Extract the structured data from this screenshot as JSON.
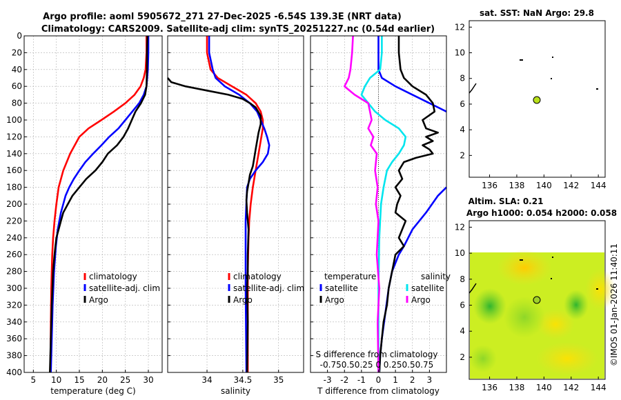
{
  "figure": {
    "title_line1": "Argo profile: aoml 5905672_271 27-Dec-2025 -6.54S 139.3E (NRT data)",
    "title_line2": "Climatology: CARS2009. Satellite-adj clim: synTS_20251227.nc (0.54d earlier)",
    "footer": "©IMOS 01-Jan-2026 11:40:11"
  },
  "colors": {
    "climatology": "#ff0000",
    "satellite": "#0000ff",
    "argo": "#000000",
    "sat_salinity": "#00e5ee",
    "argo_salinity": "#ff00ff",
    "map_fill": "#ccee22",
    "marker": "#b8e01a"
  },
  "chart_data": [
    {
      "id": "temp",
      "type": "line",
      "xlabel": "temperature (deg C)",
      "ylabel": "",
      "xlim": [
        3,
        33
      ],
      "ylim": [
        400,
        0
      ],
      "xticks": [
        5,
        10,
        15,
        20,
        25,
        30
      ],
      "yticks": [
        0,
        20,
        40,
        60,
        80,
        100,
        120,
        140,
        160,
        180,
        200,
        220,
        240,
        260,
        280,
        300,
        320,
        340,
        360,
        380,
        400
      ],
      "legend": [
        "climatology",
        "satellite-adj. clim",
        "Argo"
      ],
      "series": [
        {
          "name": "climatology",
          "color_key": "climatology",
          "x": [
            29.6,
            29.6,
            29.4,
            29.0,
            28.3,
            27.0,
            25.0,
            22.5,
            19.8,
            17.0,
            15.0,
            13.0,
            11.5,
            10.5,
            10.0,
            9.6,
            9.3,
            9.1,
            8.9,
            8.8,
            8.7
          ],
          "y": [
            0,
            20,
            40,
            50,
            60,
            70,
            80,
            90,
            100,
            110,
            120,
            140,
            160,
            180,
            200,
            220,
            240,
            260,
            300,
            340,
            400
          ]
        },
        {
          "name": "satellite-adj. clim",
          "color_key": "satellite",
          "x": [
            30.0,
            30.0,
            29.9,
            29.6,
            29.0,
            28.0,
            26.5,
            25.0,
            23.5,
            21.5,
            19.8,
            18.0,
            16.3,
            15.0,
            13.8,
            12.8,
            12.0,
            11.0,
            10.3,
            9.9,
            9.5,
            9.2,
            8.8
          ],
          "y": [
            0,
            20,
            40,
            60,
            70,
            80,
            90,
            100,
            110,
            120,
            130,
            140,
            150,
            160,
            170,
            180,
            190,
            210,
            230,
            250,
            280,
            320,
            400
          ]
        },
        {
          "name": "Argo",
          "color_key": "argo",
          "x": [
            29.8,
            29.7,
            29.7,
            29.6,
            29.3,
            28.4,
            27.2,
            26.4,
            25.6,
            24.6,
            23.2,
            21.2,
            20.0,
            18.5,
            16.5,
            15.0,
            13.5,
            12.5,
            11.5,
            11.0,
            10.5,
            10.0,
            9.6,
            9.3,
            9.0,
            8.6
          ],
          "y": [
            0,
            20,
            40,
            60,
            70,
            80,
            90,
            100,
            110,
            120,
            130,
            140,
            150,
            160,
            170,
            180,
            190,
            200,
            210,
            220,
            230,
            240,
            260,
            280,
            320,
            400
          ]
        }
      ]
    },
    {
      "id": "salt",
      "type": "line",
      "xlabel": "salinity",
      "ylabel": "",
      "xlim": [
        33.45,
        35.35
      ],
      "ylim": [
        400,
        0
      ],
      "xticks": [
        34,
        34.5,
        35
      ],
      "xtick_labels": [
        "34",
        "34.5",
        "35"
      ],
      "legend": [
        "climatology",
        "satellite-adj. clim",
        "Argo"
      ],
      "series": [
        {
          "name": "climatology",
          "color_key": "climatology",
          "x": [
            34.0,
            34.0,
            34.05,
            34.15,
            34.35,
            34.55,
            34.68,
            34.75,
            34.78,
            34.78,
            34.76,
            34.72,
            34.68,
            34.64,
            34.61,
            34.59,
            34.58,
            34.57,
            34.57,
            34.57
          ],
          "y": [
            0,
            20,
            40,
            50,
            60,
            70,
            80,
            90,
            100,
            110,
            120,
            140,
            160,
            180,
            200,
            220,
            240,
            280,
            320,
            400
          ]
        },
        {
          "name": "satellite-adj. clim",
          "color_key": "satellite",
          "x": [
            34.03,
            34.03,
            34.08,
            34.12,
            34.25,
            34.45,
            34.6,
            34.7,
            34.75,
            34.8,
            34.84,
            34.87,
            34.85,
            34.78,
            34.68,
            34.6,
            34.56,
            34.54,
            34.54,
            34.55
          ],
          "y": [
            0,
            20,
            40,
            50,
            60,
            70,
            80,
            90,
            100,
            110,
            120,
            130,
            140,
            150,
            160,
            170,
            180,
            220,
            300,
            400
          ]
        },
        {
          "name": "Argo",
          "color_key": "argo",
          "x": [
            33.4,
            33.5,
            33.7,
            34.0,
            34.3,
            34.5,
            34.6,
            34.68,
            34.75,
            34.75,
            34.72,
            34.7,
            34.68,
            34.66,
            34.64,
            34.6,
            34.58,
            34.56,
            34.55,
            34.56,
            34.58,
            34.57,
            34.57,
            34.56,
            34.57,
            34.56
          ],
          "y": [
            50,
            55,
            60,
            65,
            70,
            75,
            80,
            85,
            95,
            105,
            115,
            125,
            135,
            145,
            155,
            165,
            175,
            185,
            195,
            210,
            230,
            260,
            280,
            300,
            340,
            400
          ]
        }
      ]
    },
    {
      "id": "diff",
      "type": "line",
      "xlabel": "T difference from climatology",
      "top_xlabel": "S difference from climatology",
      "top_tick_labels": "-0.750.50.25  0  0.250.50.75",
      "xlim": [
        -4,
        4
      ],
      "ylim": [
        400,
        0
      ],
      "xticks": [
        -3,
        -2,
        -1,
        0,
        1,
        2,
        3
      ],
      "legend_titles": [
        "temperature",
        "salinity"
      ],
      "legend": [
        "satellite",
        "Argo",
        "satellite",
        "Argo"
      ],
      "series": [
        {
          "name": "satellite (T)",
          "color_key": "satellite",
          "x": [
            0,
            0,
            0.2,
            1.0,
            2.0,
            3.0,
            4.0
          ],
          "y": [
            0,
            40,
            50,
            60,
            70,
            80,
            90
          ]
        },
        {
          "name": "satellite (T) deep",
          "color_key": "satellite",
          "x": [
            4.0,
            3.5,
            2.8,
            2.0,
            1.5,
            1.2,
            1.0,
            0.8,
            0.6,
            0.4,
            0.2,
            0.1,
            0.05
          ],
          "y": [
            180,
            190,
            210,
            230,
            250,
            260,
            270,
            280,
            300,
            330,
            360,
            380,
            400
          ]
        },
        {
          "name": "Argo (T)",
          "color_key": "argo",
          "x": [
            1.2,
            1.2,
            1.3,
            1.5,
            2.0,
            2.8,
            3.2,
            3.3,
            2.6,
            2.8,
            3.5,
            2.8,
            3.2,
            2.6,
            3.0,
            3.2,
            2.2,
            1.5,
            1.2,
            1.4,
            1.0,
            1.3,
            1.1,
            1.0,
            1.6,
            1.2,
            1.5,
            1.0,
            0.9,
            0.8,
            0.6,
            0.5,
            0.3,
            0.2,
            0.1,
            0.05
          ],
          "y": [
            0,
            20,
            40,
            50,
            60,
            70,
            80,
            90,
            100,
            110,
            115,
            120,
            125,
            130,
            135,
            140,
            145,
            150,
            160,
            170,
            180,
            190,
            200,
            210,
            220,
            240,
            250,
            260,
            270,
            280,
            300,
            320,
            340,
            360,
            380,
            400
          ]
        },
        {
          "name": "satellite (S)",
          "color_key": "sat_salinity",
          "x": [
            0.2,
            0.2,
            0.1,
            -0.5,
            -0.8,
            -1.0,
            -0.6,
            -0.2,
            0.4,
            1.2,
            1.6,
            1.5,
            1.2,
            0.8,
            0.5,
            0.3,
            0.15,
            0.05,
            0,
            0
          ],
          "y": [
            0,
            20,
            40,
            50,
            60,
            70,
            80,
            90,
            100,
            110,
            120,
            130,
            140,
            150,
            160,
            180,
            200,
            240,
            300,
            400
          ]
        },
        {
          "name": "Argo (S)",
          "color_key": "argo_salinity",
          "x": [
            -1.5,
            -1.55,
            -1.65,
            -1.75,
            -2.0,
            -1.4,
            -0.6,
            -0.5,
            -0.4,
            -0.6,
            -0.3,
            -0.45,
            -0.1,
            -0.2,
            -0.05,
            -0.15,
            0,
            -0.1,
            0.05,
            -0.05,
            0
          ],
          "y": [
            0,
            20,
            40,
            50,
            60,
            70,
            80,
            90,
            100,
            110,
            120,
            130,
            140,
            160,
            180,
            200,
            220,
            260,
            300,
            340,
            400
          ]
        }
      ]
    },
    {
      "id": "map_sst",
      "type": "scatter",
      "title": "sat. SST: NaN Argo: 29.8",
      "xlim": [
        134.5,
        144.5
      ],
      "ylim": [
        0.3,
        12.5
      ],
      "xticks": [
        136,
        138,
        140,
        142,
        144
      ],
      "yticks": [
        2,
        4,
        6,
        8,
        10,
        12
      ],
      "argo_position": [
        139.3,
        6.54
      ]
    },
    {
      "id": "map_sla",
      "type": "heatmap",
      "title": "Altim. SLA: 0.21",
      "subtitle": "Argo h1000: 0.054 h2000: 0.058",
      "xlim": [
        134.5,
        144.5
      ],
      "ylim": [
        0.3,
        12.5
      ],
      "data_top": 10,
      "xticks": [
        136,
        138,
        140,
        142,
        144
      ],
      "yticks": [
        2,
        4,
        6,
        8,
        10,
        12
      ],
      "argo_position": [
        139.3,
        6.54
      ]
    }
  ]
}
